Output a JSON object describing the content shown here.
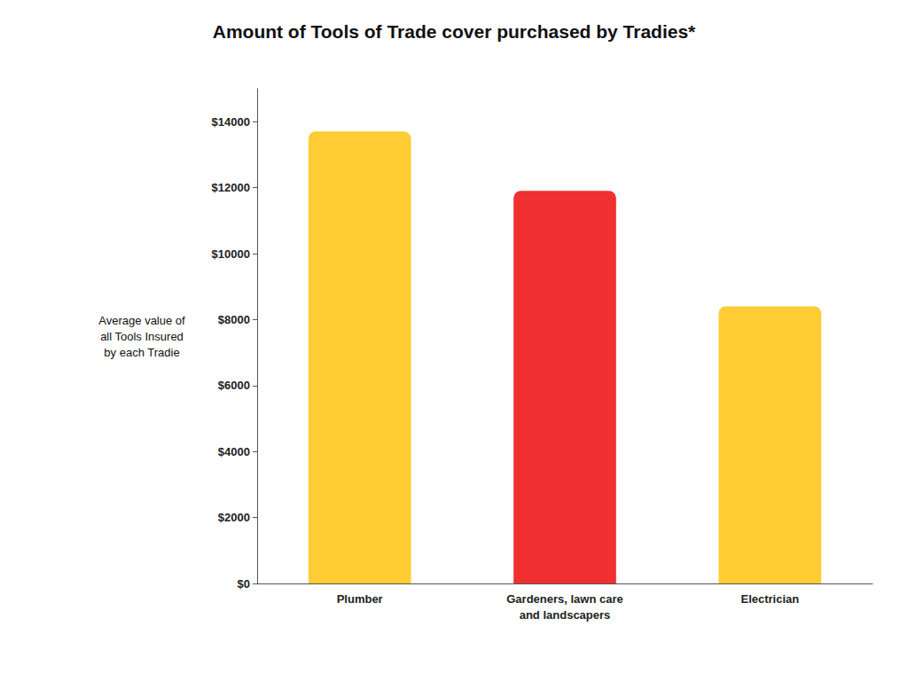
{
  "chart_data": {
    "type": "bar",
    "title": "Amount of Tools of Trade cover purchased by Tradies*",
    "categories": [
      "Plumber",
      "Gardeners, lawn care\nand landscapers",
      "Electrician"
    ],
    "values": [
      13700,
      11900,
      8400
    ],
    "colors": [
      "#FFCC33",
      "#F03030",
      "#FFCC33"
    ],
    "ylabel": "Average value of\nall Tools Insured\nby each Tradie",
    "ylim": [
      0,
      15000
    ],
    "yticks": [
      {
        "value": 0,
        "label": "$0"
      },
      {
        "value": 2000,
        "label": "$2000"
      },
      {
        "value": 4000,
        "label": "$4000"
      },
      {
        "value": 6000,
        "label": "$6000"
      },
      {
        "value": 8000,
        "label": "$8000"
      },
      {
        "value": 10000,
        "label": "$10000"
      },
      {
        "value": 12000,
        "label": "$12000"
      },
      {
        "value": 14000,
        "label": "$14000"
      }
    ],
    "grid": false
  }
}
